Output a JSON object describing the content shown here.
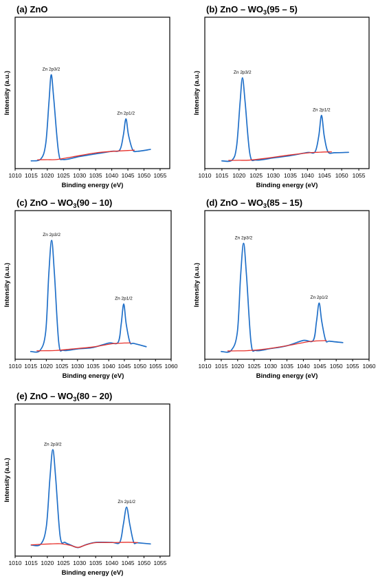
{
  "chart_data": [
    {
      "type": "line",
      "title": "(a) ZnO",
      "xlabel": "Binding energy (eV)",
      "ylabel": "Intensity (a.u.)",
      "xlim": [
        1010,
        1058
      ],
      "xticks": [
        1010,
        1015,
        1020,
        1025,
        1030,
        1035,
        1040,
        1045,
        1050,
        1055
      ],
      "grid": false,
      "series": [
        {
          "role": "spectrum",
          "color": "#1f6fc8",
          "x": [
            1015,
            1018,
            1019.5,
            1020.5,
            1021.2,
            1022,
            1023.5,
            1025,
            1030,
            1035,
            1040,
            1042.5,
            1043.6,
            1044.4,
            1045.2,
            1046.5,
            1048,
            1052
          ],
          "y": [
            0.2,
            2.5,
            20,
            68,
            100,
            72,
            10,
            1.8,
            5.3,
            8.3,
            11.3,
            13,
            30,
            49,
            30,
            13,
            11.3,
            13.5
          ]
        },
        {
          "role": "background",
          "color": "#e8302a",
          "x": [
            1017,
            1020,
            1023,
            1028,
            1035,
            1041,
            1043,
            1045,
            1047
          ],
          "y": [
            1.5,
            1.6,
            1.8,
            5,
            9.5,
            11.4,
            11.8,
            12.2,
            12.6
          ]
        }
      ],
      "annotations": [
        {
          "text": "Zn 2p3/2",
          "x": 1021.2
        },
        {
          "text": "Zn 2p1/2",
          "x": 1044.4
        }
      ]
    },
    {
      "type": "line",
      "title_pre": "(b) ZnO – WO",
      "title_sub": "3",
      "title_post": "(95 – 5)",
      "xlabel": "Binding energy (eV)",
      "ylabel": "Intensity (a.u.)",
      "xlim": [
        1010,
        1058
      ],
      "xticks": [
        1010,
        1015,
        1020,
        1025,
        1030,
        1035,
        1040,
        1045,
        1050,
        1055
      ],
      "grid": false,
      "series": [
        {
          "role": "spectrum",
          "color": "#1f6fc8",
          "x": [
            1015,
            1018,
            1019.3,
            1020.3,
            1021,
            1021.8,
            1023.2,
            1025,
            1030,
            1035,
            1040,
            1042.2,
            1043.3,
            1044.1,
            1044.9,
            1046,
            1048,
            1052
          ],
          "y": [
            0.2,
            1.2,
            18,
            70,
            100,
            70,
            8,
            1.2,
            3.8,
            6.5,
            10.3,
            11,
            30,
            55,
            30,
            11,
            10,
            10.5
          ]
        },
        {
          "role": "background",
          "color": "#e8302a",
          "x": [
            1017,
            1020,
            1023,
            1028,
            1035,
            1041,
            1043,
            1045,
            1047
          ],
          "y": [
            0.8,
            0.9,
            1.1,
            3.4,
            7.4,
            10.1,
            10.5,
            10.9,
            11
          ]
        }
      ],
      "annotations": [
        {
          "text": "Zn 2p3/2",
          "x": 1021
        },
        {
          "text": "Zn 2p1/2",
          "x": 1044.1
        }
      ]
    },
    {
      "type": "line",
      "title_pre": "(c) ZnO – WO",
      "title_sub": "3",
      "title_post": "(90 – 10)",
      "xlabel": "Binding energy (eV)",
      "ylabel": "Intensity (a.u.)",
      "xlim": [
        1010,
        1060
      ],
      "xticks": [
        1010,
        1015,
        1020,
        1025,
        1030,
        1035,
        1040,
        1045,
        1050,
        1055,
        1060
      ],
      "grid": false,
      "series": [
        {
          "role": "spectrum",
          "color": "#1f6fc8",
          "x": [
            1015,
            1018,
            1019.8,
            1020.8,
            1021.7,
            1022.6,
            1024,
            1025.5,
            1030,
            1035,
            1040,
            1043,
            1044,
            1044.8,
            1045.6,
            1046.8,
            1048,
            1052
          ],
          "y": [
            0.3,
            1.3,
            18,
            70,
            100,
            70,
            8,
            1.3,
            2.6,
            3.9,
            7.9,
            8.5,
            25,
            43,
            25,
            8.5,
            7.6,
            4.6
          ]
        },
        {
          "role": "background",
          "color": "#e8302a",
          "x": [
            1017,
            1020,
            1023,
            1028,
            1035,
            1041,
            1043,
            1045,
            1047
          ],
          "y": [
            0.9,
            1,
            1.2,
            2.5,
            4.4,
            7.2,
            7.6,
            7.9,
            8
          ]
        }
      ],
      "annotations": [
        {
          "text": "Zn 2p3/2",
          "x": 1021.7
        },
        {
          "text": "Zn 2p1/2",
          "x": 1044.8
        }
      ]
    },
    {
      "type": "line",
      "title_pre": "(d) ZnO – WO",
      "title_sub": "3",
      "title_post": "(85 – 15)",
      "xlabel": "Binding energy (eV)",
      "ylabel": "Intensity (a.u.)",
      "xlim": [
        1010,
        1060
      ],
      "xticks": [
        1010,
        1015,
        1020,
        1025,
        1030,
        1035,
        1040,
        1045,
        1050,
        1055,
        1060
      ],
      "grid": false,
      "series": [
        {
          "role": "spectrum",
          "color": "#1f6fc8",
          "x": [
            1015,
            1018,
            1019.9,
            1020.9,
            1021.8,
            1022.7,
            1024.1,
            1025.6,
            1030,
            1035,
            1040,
            1043,
            1044,
            1044.8,
            1045.6,
            1046.8,
            1048,
            1052
          ],
          "y": [
            0.3,
            1.2,
            18,
            70,
            100,
            70,
            8,
            1.2,
            3,
            5.6,
            10.5,
            10.5,
            28,
            45,
            28,
            10.5,
            9.8,
            8.5
          ]
        },
        {
          "role": "background",
          "color": "#e8302a",
          "x": [
            1017,
            1020,
            1023,
            1028,
            1035,
            1041,
            1043,
            1045,
            1047
          ],
          "y": [
            0.8,
            0.9,
            1.1,
            2.4,
            5.6,
            9.1,
            9.8,
            10.2,
            10.4
          ]
        }
      ],
      "annotations": [
        {
          "text": "Zn 2p3/2",
          "x": 1021.8
        },
        {
          "text": "Zn 2p1/2",
          "x": 1044.8
        }
      ]
    },
    {
      "type": "line",
      "title_pre": "(e) ZnO – WO",
      "title_sub": "3",
      "title_post": "(80 – 20)",
      "xlabel": "Binding energy (eV)",
      "ylabel": "Intensity (a.u.)",
      "xlim": [
        1010,
        1058
      ],
      "xticks": [
        1010,
        1015,
        1020,
        1025,
        1030,
        1035,
        1040,
        1045,
        1050,
        1055
      ],
      "grid": false,
      "series": [
        {
          "role": "spectrum",
          "color": "#1f6fc8",
          "x": [
            1015,
            1018,
            1019.7,
            1020.8,
            1021.7,
            1022.6,
            1024,
            1025.5,
            1027,
            1029.5,
            1032,
            1035,
            1040,
            1042.5,
            1043.6,
            1044.6,
            1045.6,
            1046.8,
            1048,
            1052
          ],
          "y": [
            0.4,
            1.5,
            20,
            70,
            100,
            70,
            9,
            3.2,
            0.8,
            -2.2,
            0.8,
            3.2,
            3.2,
            3.4,
            22,
            40,
            22,
            3.4,
            2.8,
            1.6
          ]
        },
        {
          "role": "background",
          "color": "#e8302a",
          "x": [
            1015,
            1018,
            1021,
            1024,
            1027,
            1029.5,
            1032,
            1035,
            1040,
            1045,
            1048
          ],
          "y": [
            0.6,
            1.2,
            1.6,
            1.8,
            0.2,
            -2,
            0.6,
            2.9,
            3,
            3.3,
            3
          ]
        }
      ],
      "annotations": [
        {
          "text": "Zn 2p3/2",
          "x": 1021.7
        },
        {
          "text": "Zn 2p1/2",
          "x": 1044.6
        }
      ]
    }
  ]
}
